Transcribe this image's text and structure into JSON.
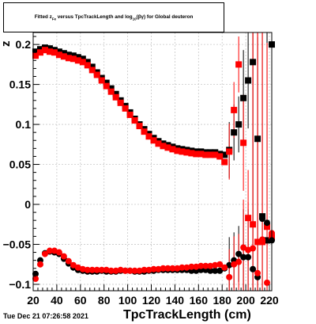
{
  "title_parts": {
    "pre": "Fitted  z",
    "sub1": "Fe",
    "mid": "  versus  TpcTrackLength and log",
    "sub2": "10",
    "post": "(βγ) for Global deuteron"
  },
  "timestamp": "Tue Dec 21 07:26:58 2021",
  "colors": {
    "series_black": "#000000",
    "series_red": "#ff0000",
    "grid": "#c8c8c8",
    "frame": "#000000"
  },
  "chart_data": {
    "type": "scatter",
    "title": "Fitted z_Fe versus TpcTrackLength and log10(βγ) for Global deuteron",
    "xlabel": "TpcTrackLength (cm)",
    "ylabel": "z",
    "xlim": [
      20,
      222
    ],
    "ylim": [
      -0.108,
      0.215
    ],
    "grid": true,
    "xticks": [
      20,
      40,
      60,
      80,
      100,
      120,
      140,
      160,
      180,
      200,
      220
    ],
    "xtick_labels": [
      "20",
      "40",
      "60",
      "80",
      "100",
      "120",
      "140",
      "160",
      "180",
      "200",
      "220"
    ],
    "yticks": [
      -0.1,
      -0.05,
      0,
      0.05,
      0.1,
      0.15,
      0.2
    ],
    "ytick_labels": [
      "−0.1",
      "−0.05",
      "0",
      "0.05",
      "0.1",
      "0.15",
      "0.2"
    ],
    "series": [
      {
        "marker": "square",
        "color": "#000000",
        "x": [
          22,
          26,
          30,
          34,
          38,
          42,
          46,
          50,
          54,
          58,
          62,
          66,
          70,
          74,
          78,
          82,
          86,
          90,
          94,
          98,
          102,
          106,
          110,
          114,
          118,
          122,
          126,
          130,
          134,
          138,
          142,
          146,
          150,
          154,
          158,
          162,
          166,
          170,
          174,
          178,
          182,
          186,
          190,
          194,
          198,
          202,
          206,
          210,
          214,
          218,
          222
        ],
        "y": [
          0.191,
          0.194,
          0.196,
          0.195,
          0.193,
          0.191,
          0.189,
          0.187,
          0.186,
          0.184,
          0.182,
          0.178,
          0.172,
          0.165,
          0.158,
          0.152,
          0.145,
          0.138,
          0.13,
          0.123,
          0.115,
          0.107,
          0.1,
          0.094,
          0.088,
          0.083,
          0.079,
          0.076,
          0.074,
          0.072,
          0.07,
          0.069,
          0.068,
          0.067,
          0.066,
          0.066,
          0.065,
          0.065,
          0.065,
          0.063,
          0.062,
          0.068,
          0.09,
          0.1,
          0.133,
          0.155,
          0.178,
          0.082,
          -0.015,
          -0.045,
          0.2
        ]
      },
      {
        "marker": "square",
        "color": "#ff0000",
        "x": [
          22,
          26,
          30,
          34,
          38,
          42,
          46,
          50,
          54,
          58,
          62,
          66,
          70,
          74,
          78,
          82,
          86,
          90,
          94,
          98,
          102,
          106,
          110,
          114,
          118,
          122,
          126,
          130,
          134,
          138,
          142,
          146,
          150,
          154,
          158,
          162,
          166,
          170,
          174,
          178,
          182,
          186,
          190,
          194,
          198,
          202,
          206,
          210,
          214,
          218,
          222
        ],
        "y": [
          0.186,
          0.19,
          0.193,
          0.191,
          0.19,
          0.187,
          0.185,
          0.183,
          0.182,
          0.18,
          0.178,
          0.174,
          0.168,
          0.162,
          0.155,
          0.148,
          0.141,
          0.134,
          0.127,
          0.12,
          0.112,
          0.105,
          0.098,
          0.091,
          0.085,
          0.08,
          0.076,
          0.073,
          0.071,
          0.069,
          0.067,
          0.066,
          0.065,
          0.064,
          0.063,
          0.063,
          0.062,
          0.062,
          0.062,
          0.06,
          0.053,
          0.066,
          0.118,
          0.175,
          0.077,
          -0.017,
          -0.025,
          -0.047,
          -0.047,
          -0.028,
          -0.041
        ]
      },
      {
        "marker": "circle",
        "color": "#000000",
        "x": [
          22,
          26,
          30,
          34,
          38,
          42,
          46,
          50,
          54,
          58,
          62,
          66,
          70,
          74,
          78,
          82,
          86,
          90,
          94,
          98,
          102,
          106,
          110,
          114,
          118,
          122,
          126,
          130,
          134,
          138,
          142,
          146,
          150,
          154,
          158,
          162,
          166,
          170,
          174,
          178,
          182,
          186,
          190,
          194,
          198,
          202,
          206,
          210,
          214,
          218,
          222
        ],
        "y": [
          -0.087,
          -0.07,
          -0.061,
          -0.059,
          -0.06,
          -0.062,
          -0.068,
          -0.074,
          -0.079,
          -0.082,
          -0.083,
          -0.084,
          -0.084,
          -0.084,
          -0.083,
          -0.084,
          -0.084,
          -0.084,
          -0.083,
          -0.083,
          -0.083,
          -0.084,
          -0.084,
          -0.084,
          -0.083,
          -0.083,
          -0.082,
          -0.082,
          -0.082,
          -0.082,
          -0.082,
          -0.082,
          -0.082,
          -0.083,
          -0.083,
          -0.082,
          -0.082,
          -0.083,
          -0.083,
          -0.083,
          -0.08,
          -0.076,
          -0.07,
          -0.062,
          -0.066,
          -0.066,
          -0.081,
          -0.091,
          -0.018,
          -0.023,
          -0.045
        ]
      },
      {
        "marker": "circle",
        "color": "#ff0000",
        "x": [
          22,
          26,
          30,
          34,
          38,
          42,
          46,
          50,
          54,
          58,
          62,
          66,
          70,
          74,
          78,
          82,
          86,
          90,
          94,
          98,
          102,
          106,
          110,
          114,
          118,
          122,
          126,
          130,
          134,
          138,
          142,
          146,
          150,
          154,
          158,
          162,
          166,
          170,
          174,
          178,
          182,
          186,
          190,
          194,
          198,
          202,
          206,
          210,
          214,
          218,
          222
        ],
        "y": [
          -0.093,
          -0.075,
          -0.062,
          -0.058,
          -0.058,
          -0.06,
          -0.065,
          -0.071,
          -0.076,
          -0.079,
          -0.081,
          -0.082,
          -0.082,
          -0.082,
          -0.082,
          -0.082,
          -0.083,
          -0.083,
          -0.082,
          -0.083,
          -0.083,
          -0.083,
          -0.083,
          -0.082,
          -0.082,
          -0.081,
          -0.081,
          -0.08,
          -0.08,
          -0.08,
          -0.08,
          -0.079,
          -0.079,
          -0.078,
          -0.078,
          -0.077,
          -0.077,
          -0.077,
          -0.076,
          -0.075,
          -0.079,
          -0.091,
          -0.075,
          -0.072,
          -0.054,
          -0.057,
          -0.055,
          -0.086,
          -0.044,
          -0.098,
          -0.036
        ]
      }
    ]
  }
}
